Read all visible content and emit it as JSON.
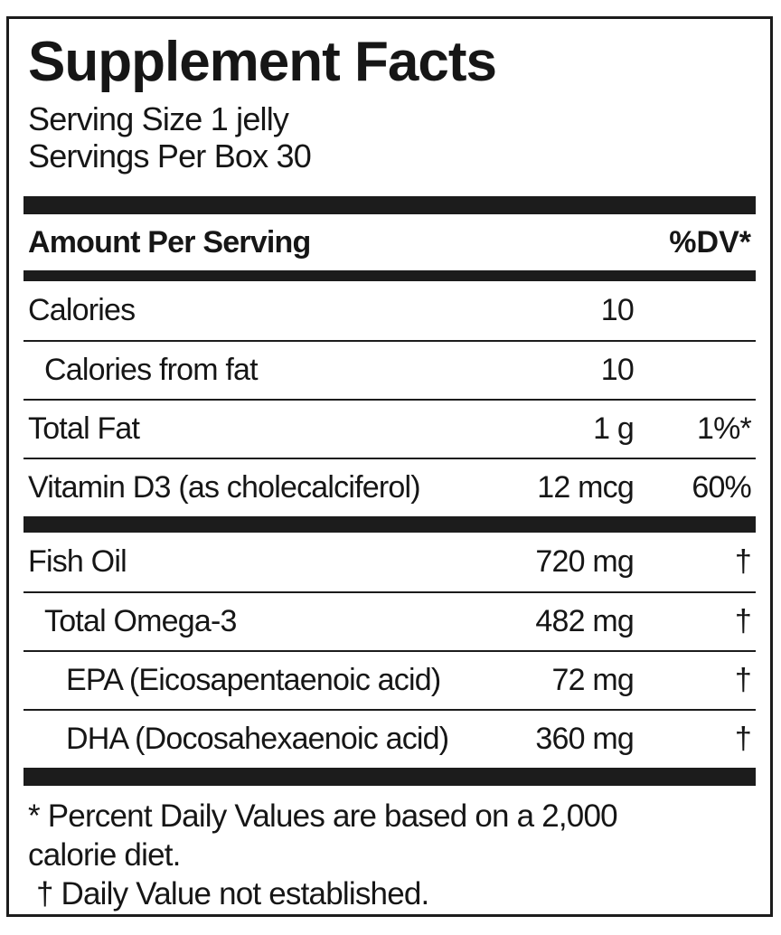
{
  "label": {
    "title": "Supplement Facts",
    "serving": {
      "size_line": "Serving Size 1 jelly",
      "per_box_line": "Servings Per Box 30"
    },
    "header": {
      "amount_per_serving": "Amount Per Serving",
      "daily_value": "%DV*"
    },
    "sections": [
      {
        "rows": [
          {
            "name": "Calories",
            "amount": "10",
            "dv": ""
          },
          {
            "name": "Calories from fat",
            "amount": "10",
            "dv": ""
          },
          {
            "name": "Total Fat",
            "amount": "1 g",
            "dv": "1%*"
          },
          {
            "name": "Vitamin D3 (as cholecalciferol)",
            "amount": "12 mcg",
            "dv": "60%"
          }
        ]
      },
      {
        "rows": [
          {
            "name": "Fish Oil",
            "amount": "720 mg",
            "dv": "†"
          },
          {
            "name": "Total Omega-3",
            "amount": "482 mg",
            "dv": "†"
          },
          {
            "name": "EPA (Eicosapentaenoic acid)",
            "amount": "72 mg",
            "dv": "†"
          },
          {
            "name": "DHA (Docosahexaenoic acid)",
            "amount": "360 mg",
            "dv": "†"
          }
        ]
      }
    ],
    "footnotes": [
      "* Percent Daily Values are based on a 2,000",
      "calorie diet.",
      " † Daily Value not established."
    ],
    "colors": {
      "ink": "#1c1c1c",
      "background": "#ffffff"
    }
  }
}
